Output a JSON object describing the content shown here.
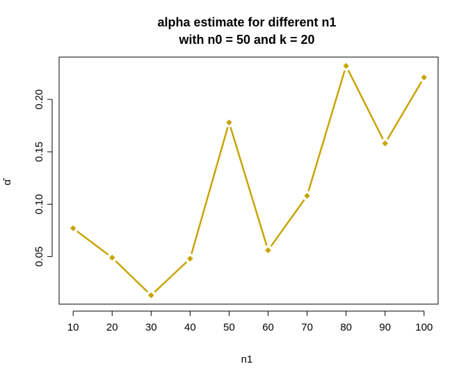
{
  "chart_data": {
    "type": "line",
    "title_line1": "alpha estimate for different n1",
    "title_line2": "with n0 = 50 and k = 20",
    "xlabel": "n1",
    "ylabel": "α̂",
    "x": [
      10,
      20,
      30,
      40,
      50,
      60,
      70,
      80,
      90,
      100
    ],
    "y": [
      0.077,
      0.049,
      0.013,
      0.048,
      0.178,
      0.056,
      0.108,
      0.232,
      0.158,
      0.221
    ],
    "xticks": [
      10,
      20,
      30,
      40,
      50,
      60,
      70,
      80,
      90,
      100
    ],
    "yticks": [
      0.05,
      0.1,
      0.15,
      0.2
    ],
    "ytick_labels": [
      "0.05",
      "0.10",
      "0.15",
      "0.20"
    ],
    "xlim": [
      6.4,
      103.6
    ],
    "ylim": [
      0.0046,
      0.2404
    ],
    "grid": false,
    "line_color": "#C8A400",
    "marker": "diamond"
  }
}
